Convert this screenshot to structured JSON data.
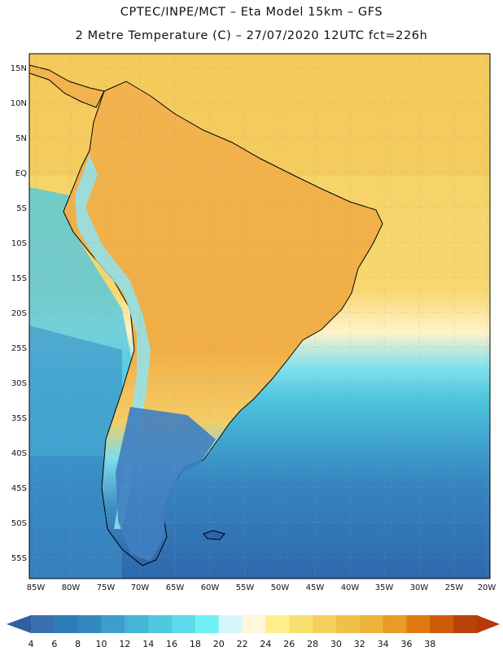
{
  "header": {
    "line1": "CPTEC/INPE/MCT –  Eta Model 15km – GFS",
    "line2": "2 Metre Temperature (C) – 27/07/2020 12UTC fct=226h"
  },
  "map": {
    "lat_labels": [
      "15N",
      "10N",
      "5N",
      "EQ",
      "5S",
      "10S",
      "15S",
      "20S",
      "25S",
      "30S",
      "35S",
      "40S",
      "45S",
      "50S",
      "55S"
    ],
    "lon_labels": [
      "85W",
      "80W",
      "75W",
      "70W",
      "65W",
      "60W",
      "55W",
      "50W",
      "45W",
      "40W",
      "35W",
      "30W",
      "25W",
      "20W"
    ],
    "land_fill": "#F2B35A",
    "ocean_warm": "#F5D060",
    "ocean_cold": "#2E6FB0"
  },
  "colorbar": {
    "levels": [
      "4",
      "6",
      "8",
      "10",
      "12",
      "14",
      "16",
      "18",
      "20",
      "22",
      "24",
      "26",
      "28",
      "30",
      "32",
      "34",
      "36",
      "38"
    ],
    "colors": [
      "#3A70B0",
      "#2E7BB8",
      "#3388C0",
      "#3D9ECC",
      "#44B4D8",
      "#4FC8E0",
      "#5ED8EA",
      "#6EF0F5",
      "#D4F6FB",
      "#FFF6DC",
      "#FFF08C",
      "#F8E070",
      "#F5D05C",
      "#F0C04A",
      "#EEB43A",
      "#E89B25",
      "#E07A10",
      "#CF5A08",
      "#B8420A"
    ],
    "under_color": "#3060A0",
    "over_color": "#B83808"
  }
}
